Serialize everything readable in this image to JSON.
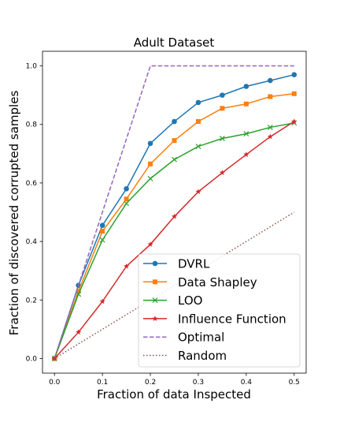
{
  "chart_data": {
    "type": "line",
    "title": "Adult Dataset",
    "xlabel": "Fraction of data Inspected",
    "ylabel": "Fraction of discovered corrupted samples",
    "xlim": [
      -0.025,
      0.525
    ],
    "ylim": [
      -0.05,
      1.05
    ],
    "xticks": [
      "0.0",
      "0.1",
      "0.2",
      "0.3",
      "0.4",
      "0.5"
    ],
    "yticks": [
      "0.0",
      "0.2",
      "0.4",
      "0.6",
      "0.8",
      "1.0"
    ],
    "grid": false,
    "legend_position": "lower-right",
    "x": [
      0.0,
      0.05,
      0.1,
      0.15,
      0.2,
      0.25,
      0.3,
      0.35,
      0.4,
      0.45,
      0.5
    ],
    "series": [
      {
        "name": "DVRL",
        "color": "#1f77b4",
        "marker": "circle",
        "style": "solid",
        "values": [
          0.0,
          0.25,
          0.455,
          0.58,
          0.735,
          0.81,
          0.875,
          0.9,
          0.93,
          0.95,
          0.97
        ]
      },
      {
        "name": "Data Shapley",
        "color": "#ff7f0e",
        "marker": "square",
        "style": "solid",
        "values": [
          0.0,
          0.23,
          0.435,
          0.545,
          0.665,
          0.745,
          0.81,
          0.855,
          0.87,
          0.895,
          0.905
        ]
      },
      {
        "name": "LOO",
        "color": "#2ca02c",
        "marker": "x",
        "style": "solid",
        "values": [
          0.0,
          0.22,
          0.405,
          0.53,
          0.615,
          0.68,
          0.725,
          0.752,
          0.768,
          0.79,
          0.805
        ]
      },
      {
        "name": "Influence Function",
        "color": "#d62728",
        "marker": "star",
        "style": "solid",
        "values": [
          0.0,
          0.09,
          0.195,
          0.315,
          0.39,
          0.485,
          0.57,
          0.635,
          0.697,
          0.758,
          0.81
        ]
      },
      {
        "name": "Optimal",
        "color": "#9467bd",
        "marker": "none",
        "style": "dashed",
        "x": [
          0.0,
          0.2,
          0.5
        ],
        "values": [
          0.0,
          1.0,
          1.0
        ]
      },
      {
        "name": "Random",
        "color": "#8c564b",
        "marker": "none",
        "style": "dotted",
        "x": [
          0.0,
          0.5
        ],
        "values": [
          0.0,
          0.5
        ]
      }
    ]
  }
}
